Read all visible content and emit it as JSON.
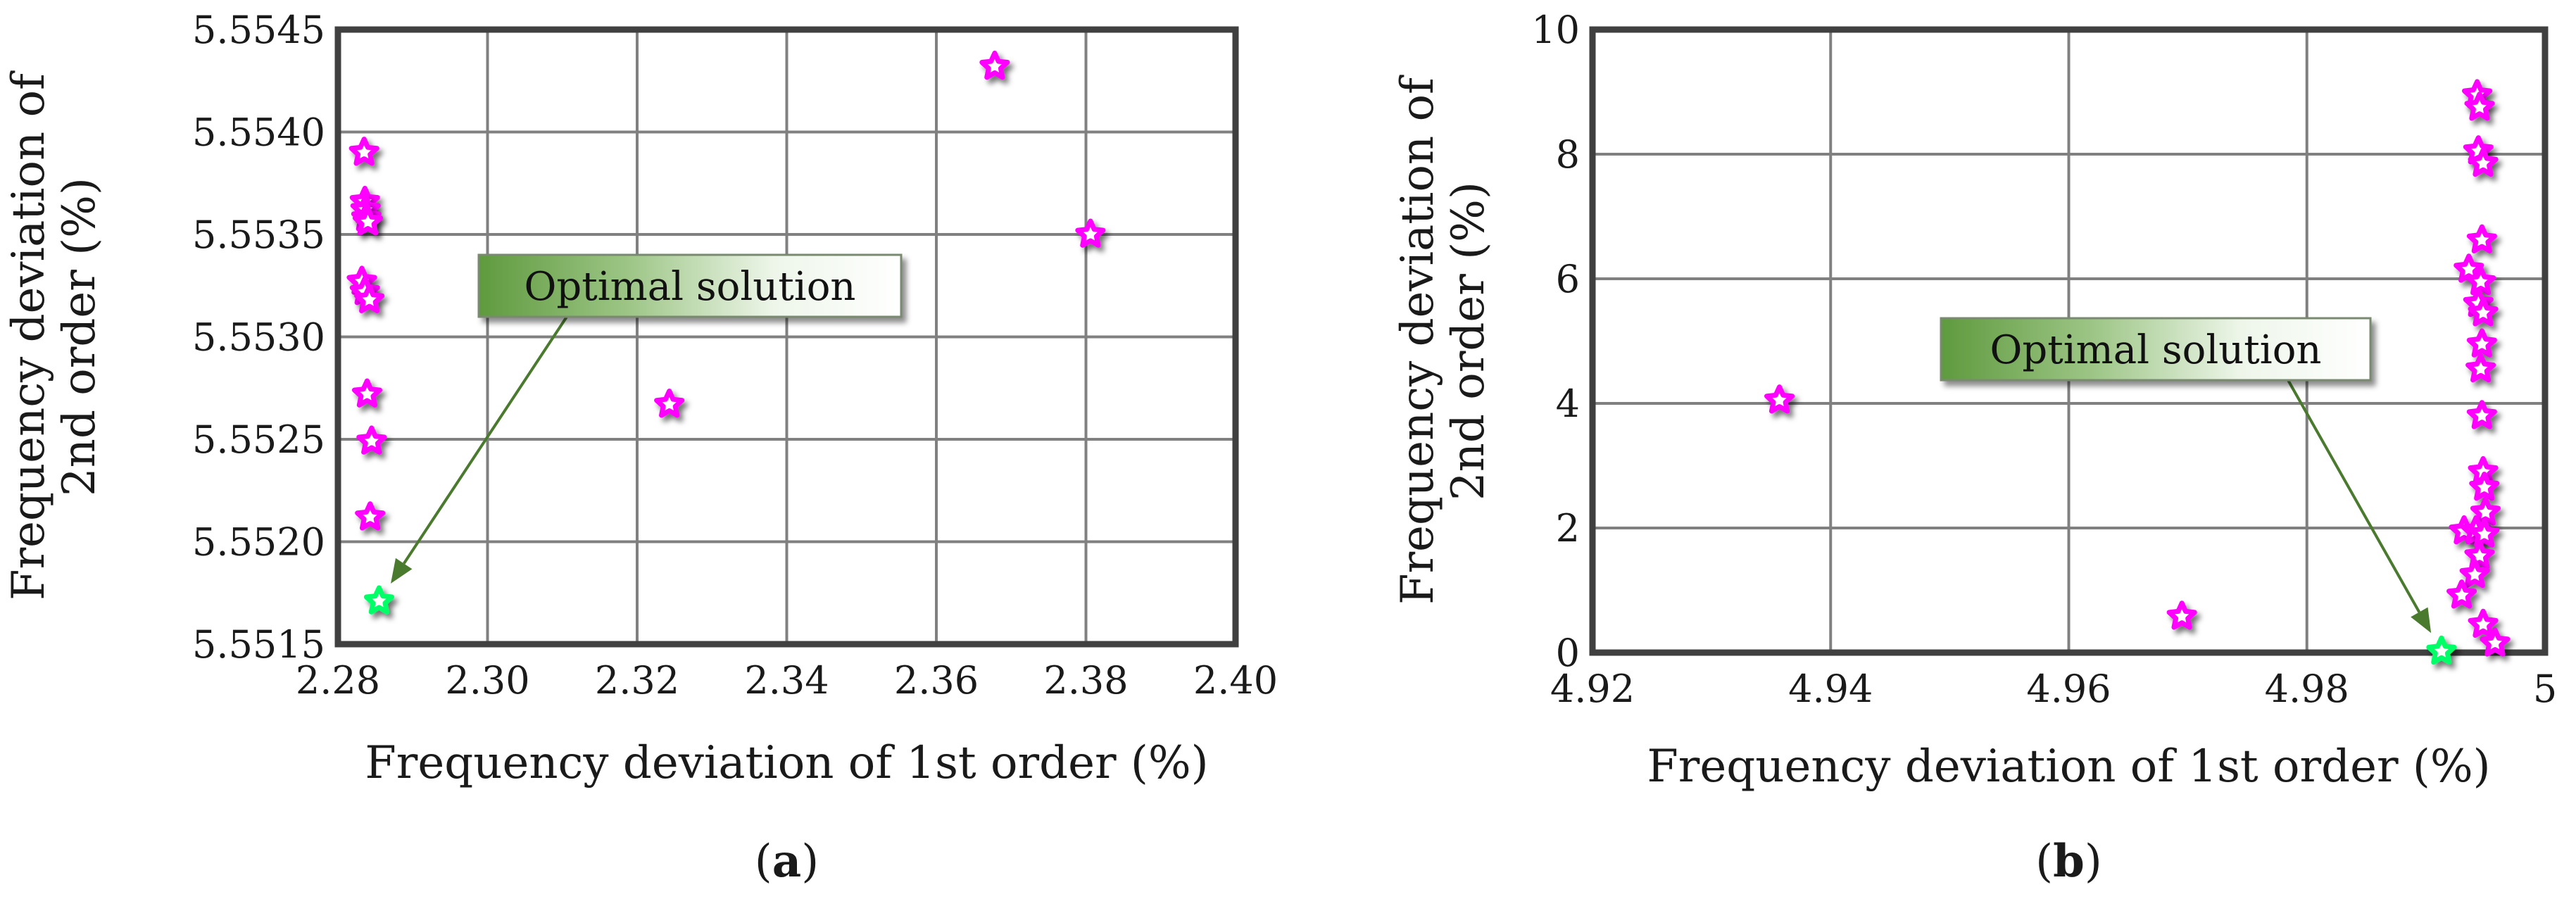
{
  "colors": {
    "point": "#ff00ff",
    "optimal_point": "#00ff66",
    "grid": "#808080",
    "frame": "#404040",
    "callout_arrow": "#4a7a2e",
    "callout_fill_start": "#5f9a3e",
    "callout_fill_end": "#ffffff"
  },
  "chart_data": [
    {
      "type": "scatter",
      "panel_label": "(a)",
      "xlabel": "Frequency deviation of 1st order (%)",
      "ylabel": "Frequency deviation of 2nd order (%)",
      "xlim": [
        2.28,
        2.4
      ],
      "ylim": [
        5.5515,
        5.5545
      ],
      "xticks": [
        "2.28",
        "2.30",
        "2.32",
        "2.34",
        "2.36",
        "2.38",
        "2.40"
      ],
      "yticks": [
        "5.5515",
        "5.5520",
        "5.5525",
        "5.5530",
        "5.5535",
        "5.5540",
        "5.5545"
      ],
      "grid": true,
      "marker": "star",
      "points": [
        {
          "x": 2.2835,
          "y": 5.5539
        },
        {
          "x": 2.2836,
          "y": 5.55366
        },
        {
          "x": 2.2837,
          "y": 5.55362
        },
        {
          "x": 2.2838,
          "y": 5.55358
        },
        {
          "x": 2.284,
          "y": 5.55356
        },
        {
          "x": 2.2832,
          "y": 5.55327
        },
        {
          "x": 2.2836,
          "y": 5.55322
        },
        {
          "x": 2.2842,
          "y": 5.55318
        },
        {
          "x": 2.2839,
          "y": 5.55272
        },
        {
          "x": 2.2845,
          "y": 5.55249
        },
        {
          "x": 2.2843,
          "y": 5.55212
        },
        {
          "x": 2.3243,
          "y": 5.55267
        },
        {
          "x": 2.3678,
          "y": 5.55432
        },
        {
          "x": 2.3806,
          "y": 5.5535
        }
      ],
      "optimal": {
        "x": 2.2855,
        "y": 5.55171
      },
      "annotation": "Optimal solution"
    },
    {
      "type": "scatter",
      "panel_label": "(b)",
      "xlabel": "Frequency deviation of 1st order (%)",
      "ylabel": "Frequency deviation of 2nd order (%)",
      "xlim": [
        4.92,
        5.0
      ],
      "ylim": [
        0,
        10
      ],
      "xticks": [
        "4.92",
        "4.94",
        "4.96",
        "4.98",
        "5"
      ],
      "yticks": [
        "0",
        "2",
        "4",
        "6",
        "8",
        "10"
      ],
      "grid": true,
      "marker": "star",
      "points": [
        {
          "x": 4.9357,
          "y": 4.05
        },
        {
          "x": 4.9695,
          "y": 0.58
        },
        {
          "x": 4.9943,
          "y": 8.95
        },
        {
          "x": 4.9945,
          "y": 8.75
        },
        {
          "x": 4.9944,
          "y": 8.05
        },
        {
          "x": 4.9948,
          "y": 7.85
        },
        {
          "x": 4.9947,
          "y": 6.62
        },
        {
          "x": 4.9936,
          "y": 6.15
        },
        {
          "x": 4.9946,
          "y": 5.95
        },
        {
          "x": 4.9944,
          "y": 5.6
        },
        {
          "x": 4.9948,
          "y": 5.45
        },
        {
          "x": 4.9947,
          "y": 4.95
        },
        {
          "x": 4.9946,
          "y": 4.55
        },
        {
          "x": 4.9947,
          "y": 3.8
        },
        {
          "x": 4.9948,
          "y": 2.9
        },
        {
          "x": 4.9949,
          "y": 2.65
        },
        {
          "x": 4.995,
          "y": 2.25
        },
        {
          "x": 4.9932,
          "y": 1.95
        },
        {
          "x": 4.9942,
          "y": 1.95
        },
        {
          "x": 4.9949,
          "y": 1.9
        },
        {
          "x": 4.9945,
          "y": 1.55
        },
        {
          "x": 4.9941,
          "y": 1.25
        },
        {
          "x": 4.993,
          "y": 0.92
        },
        {
          "x": 4.9948,
          "y": 0.45
        },
        {
          "x": 4.9958,
          "y": 0.15
        }
      ],
      "optimal": {
        "x": 4.9913,
        "y": 0.02
      },
      "annotation": "Optimal solution"
    }
  ]
}
